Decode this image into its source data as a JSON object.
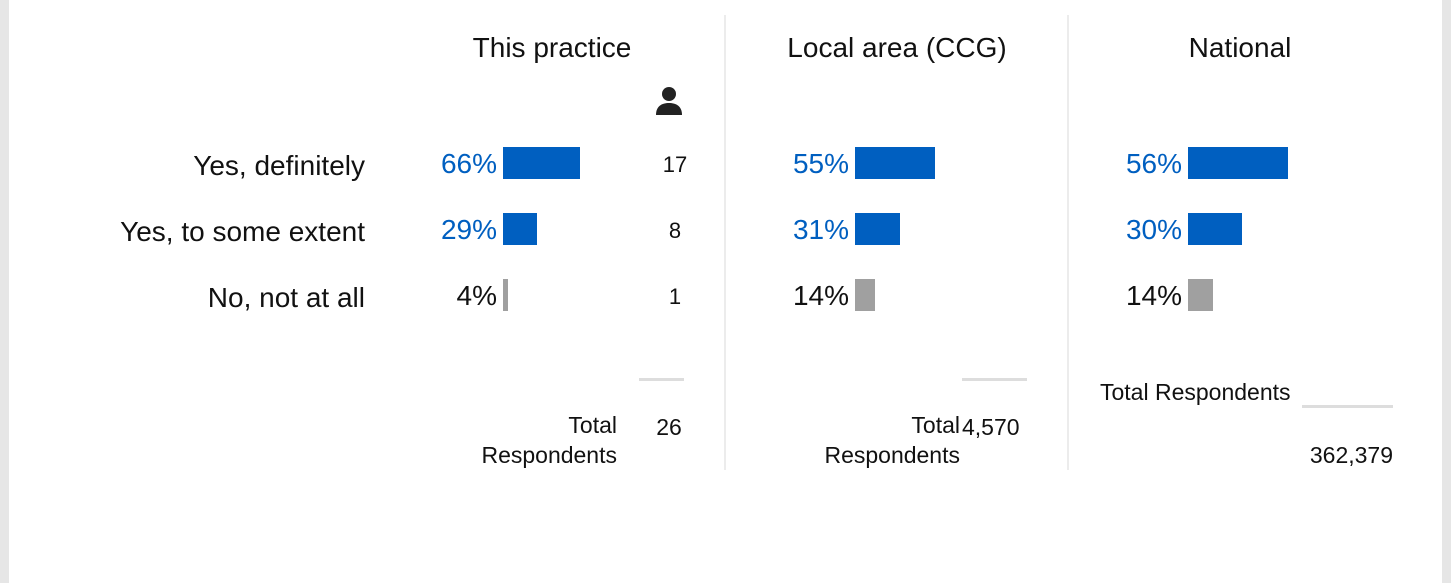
{
  "row_labels": [
    "Yes, definitely",
    "Yes, to some extent",
    "No, not at all"
  ],
  "bar_colors": [
    "#005fc0",
    "#005fc0",
    "#a0a0a0"
  ],
  "label_colors": [
    "#005fc0",
    "#005fc0",
    "#111111"
  ],
  "columns": [
    {
      "title": "This practice",
      "values": [
        {
          "value": 66,
          "label": "66%"
        },
        {
          "value": 29,
          "label": "29%"
        },
        {
          "value": 4,
          "label": "4%"
        }
      ],
      "counts": [
        17,
        8,
        1
      ],
      "total_label": "Total Respondents",
      "total": "26"
    },
    {
      "title": "Local area (CCG)",
      "values": [
        {
          "value": 55,
          "label": "55%"
        },
        {
          "value": 31,
          "label": "31%"
        },
        {
          "value": 14,
          "label": "14%"
        }
      ],
      "total_label": "Total Respondents",
      "total": "4,570"
    },
    {
      "title": "National",
      "values": [
        {
          "value": 56,
          "label": "56%"
        },
        {
          "value": 30,
          "label": "30%"
        },
        {
          "value": 14,
          "label": "14%"
        }
      ],
      "total_label": "Total Respondents",
      "total": "362,379"
    }
  ]
}
